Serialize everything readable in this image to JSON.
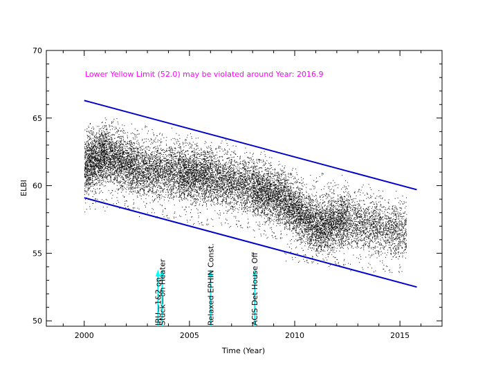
{
  "chart_data": {
    "type": "scatter",
    "title": "",
    "xlabel": "Time (Year)",
    "ylabel": "ELBI",
    "xlim": [
      1998.2,
      2017.0
    ],
    "ylim": [
      49.6,
      70.0
    ],
    "x_ticks": [
      2000,
      2005,
      2010,
      2015
    ],
    "y_ticks": [
      50,
      55,
      60,
      65,
      70
    ],
    "grid": false,
    "note": {
      "text": "Lower Yellow  Limit (52.0) may be violated around Year: 2016.9",
      "color": "#ff00ff"
    },
    "trend_lines": {
      "color": "#0000cc",
      "upper": {
        "x": [
          2000.0,
          2015.8
        ],
        "y": [
          66.3,
          59.7
        ]
      },
      "lower": {
        "x": [
          2000.0,
          2015.8
        ],
        "y": [
          59.1,
          52.5
        ]
      }
    },
    "series": [
      {
        "point_color": "#000000",
        "segments": [
          {
            "x": [
              2000.0,
              2001.0
            ],
            "y": [
              61.5,
              62.4
            ],
            "spread": [
              58.0,
              64.5
            ]
          },
          {
            "x": [
              2001.0,
              2002.5
            ],
            "y": [
              62.4,
              61.3
            ],
            "spread": [
              58.2,
              64.8
            ]
          },
          {
            "x": [
              2002.5,
              2004.5
            ],
            "y": [
              61.3,
              61.0
            ],
            "spread": [
              57.5,
              64.5
            ]
          },
          {
            "x": [
              2004.5,
              2006.0
            ],
            "y": [
              61.0,
              60.7
            ],
            "spread": [
              57.0,
              63.5
            ]
          },
          {
            "x": [
              2006.0,
              2008.0
            ],
            "y": [
              60.7,
              59.9
            ],
            "spread": [
              56.8,
              63.0
            ]
          },
          {
            "x": [
              2008.0,
              2009.5
            ],
            "y": [
              59.9,
              59.0
            ],
            "spread": [
              56.0,
              62.0
            ]
          },
          {
            "x": [
              2009.5,
              2011.0
            ],
            "y": [
              59.0,
              57.0
            ],
            "spread": [
              54.2,
              61.0
            ]
          },
          {
            "x": [
              2011.0,
              2012.5
            ],
            "y": [
              57.0,
              57.5
            ],
            "spread": [
              54.0,
              61.0
            ]
          },
          {
            "x": [
              2012.5,
              2015.3
            ],
            "y": [
              57.5,
              56.5
            ],
            "spread": [
              53.5,
              59.8
            ]
          }
        ]
      }
    ],
    "events": [
      {
        "x": 2003.5,
        "label": "IRU—1&2 on",
        "arrow_color": "#00ffff"
      },
      {
        "x": 2003.7,
        "label": "Stuck—on Heater",
        "arrow_color": "#00ffff"
      },
      {
        "x": 2006.0,
        "label": "Relaxed EPHIN Const.",
        "arrow_color": "#00ffff"
      },
      {
        "x": 2008.1,
        "label": "ACIS Det House Off",
        "arrow_color": "#00ffff"
      }
    ]
  }
}
